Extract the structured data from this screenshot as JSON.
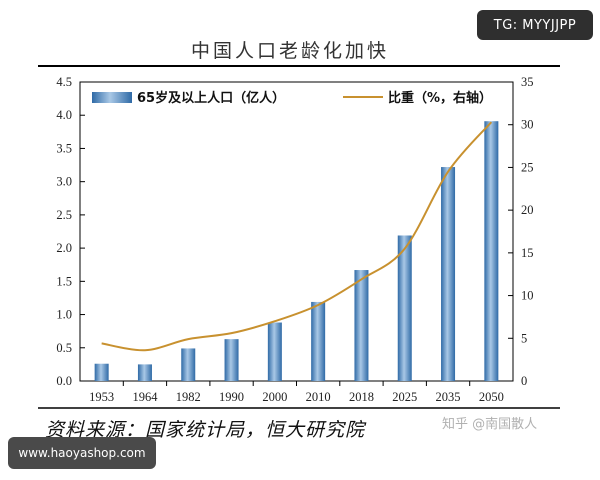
{
  "badges": {
    "top_right": "TG: MYYJJPP",
    "bottom_left": "www.haoyashop.com"
  },
  "watermark": "知乎 @南国散人",
  "source": "资料来源：国家统计局，恒大研究院",
  "colors": {
    "bar": "#4e86bd",
    "bar_light": "#a9c8e6",
    "line": "#c8912f",
    "axis": "#000000"
  },
  "chart_data": {
    "type": "bar",
    "title": "中国人口老龄化加快",
    "categories": [
      "1953",
      "1964",
      "1982",
      "1990",
      "2000",
      "2010",
      "2018",
      "2025",
      "2035",
      "2050"
    ],
    "series": [
      {
        "name": "65岁及以上人口（亿人）",
        "type": "bar",
        "axis": "left",
        "values": [
          0.26,
          0.25,
          0.49,
          0.63,
          0.88,
          1.19,
          1.67,
          2.19,
          3.22,
          3.91
        ]
      },
      {
        "name": "比重（%，右轴）",
        "type": "line",
        "axis": "right",
        "values": [
          4.4,
          3.6,
          4.9,
          5.6,
          7.0,
          8.9,
          11.9,
          15.5,
          24.5,
          30.3
        ]
      }
    ],
    "y_left": {
      "min": 0,
      "max": 4.5,
      "ticks": [
        "0.0",
        "0.5",
        "1.0",
        "1.5",
        "2.0",
        "2.5",
        "3.0",
        "3.5",
        "4.0",
        "4.5"
      ]
    },
    "y_right": {
      "min": 0,
      "max": 35,
      "ticks": [
        "0",
        "5",
        "10",
        "15",
        "20",
        "25",
        "30",
        "35"
      ]
    },
    "legend_position": "top",
    "grid": false
  }
}
